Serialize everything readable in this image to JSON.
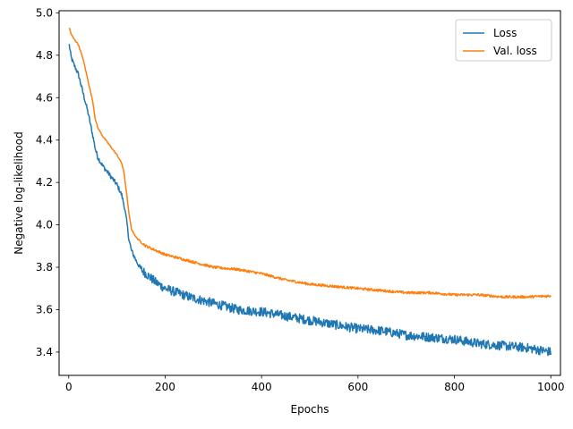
{
  "chart_data": {
    "type": "line",
    "title": "",
    "xlabel": "Epochs",
    "ylabel": "Negative log-likelihood",
    "xlim": [
      -20,
      1020
    ],
    "ylim": [
      3.29,
      5.01
    ],
    "xticks": [
      0,
      200,
      400,
      600,
      800,
      1000
    ],
    "yticks": [
      3.4,
      3.6,
      3.8,
      4.0,
      4.2,
      4.4,
      4.6,
      4.8,
      5.0
    ],
    "xtick_labels": [
      "0",
      "200",
      "400",
      "600",
      "800",
      "1000"
    ],
    "ytick_labels": [
      "3.4",
      "3.6",
      "3.8",
      "4.0",
      "4.2",
      "4.4",
      "4.6",
      "4.8",
      "5.0"
    ],
    "grid": false,
    "legend_position": "top-right",
    "series": [
      {
        "name": "Loss",
        "color": "#1f77b4",
        "x": [
          1,
          5,
          10,
          20,
          30,
          40,
          50,
          55,
          60,
          70,
          80,
          90,
          100,
          110,
          115,
          120,
          125,
          130,
          140,
          150,
          160,
          180,
          200,
          250,
          300,
          350,
          400,
          450,
          500,
          550,
          600,
          650,
          700,
          750,
          800,
          850,
          900,
          950,
          1000
        ],
        "y": [
          4.85,
          4.79,
          4.76,
          4.71,
          4.62,
          4.53,
          4.42,
          4.36,
          4.32,
          4.28,
          4.25,
          4.22,
          4.19,
          4.14,
          4.09,
          4.02,
          3.93,
          3.88,
          3.83,
          3.79,
          3.77,
          3.73,
          3.7,
          3.66,
          3.63,
          3.6,
          3.59,
          3.57,
          3.55,
          3.53,
          3.51,
          3.5,
          3.48,
          3.47,
          3.46,
          3.44,
          3.43,
          3.42,
          3.4
        ]
      },
      {
        "name": "Val. loss",
        "color": "#ff7f0e",
        "x": [
          1,
          5,
          10,
          20,
          30,
          40,
          50,
          55,
          60,
          70,
          80,
          90,
          100,
          110,
          115,
          120,
          125,
          130,
          140,
          150,
          160,
          180,
          200,
          250,
          300,
          350,
          400,
          450,
          500,
          550,
          600,
          650,
          700,
          750,
          800,
          850,
          900,
          950,
          1000
        ],
        "y": [
          4.93,
          4.9,
          4.88,
          4.85,
          4.78,
          4.68,
          4.58,
          4.5,
          4.46,
          4.42,
          4.39,
          4.36,
          4.33,
          4.29,
          4.24,
          4.15,
          4.05,
          3.98,
          3.94,
          3.92,
          3.9,
          3.88,
          3.86,
          3.83,
          3.8,
          3.79,
          3.77,
          3.74,
          3.72,
          3.71,
          3.7,
          3.69,
          3.68,
          3.68,
          3.67,
          3.67,
          3.66,
          3.66,
          3.665
        ]
      }
    ]
  }
}
